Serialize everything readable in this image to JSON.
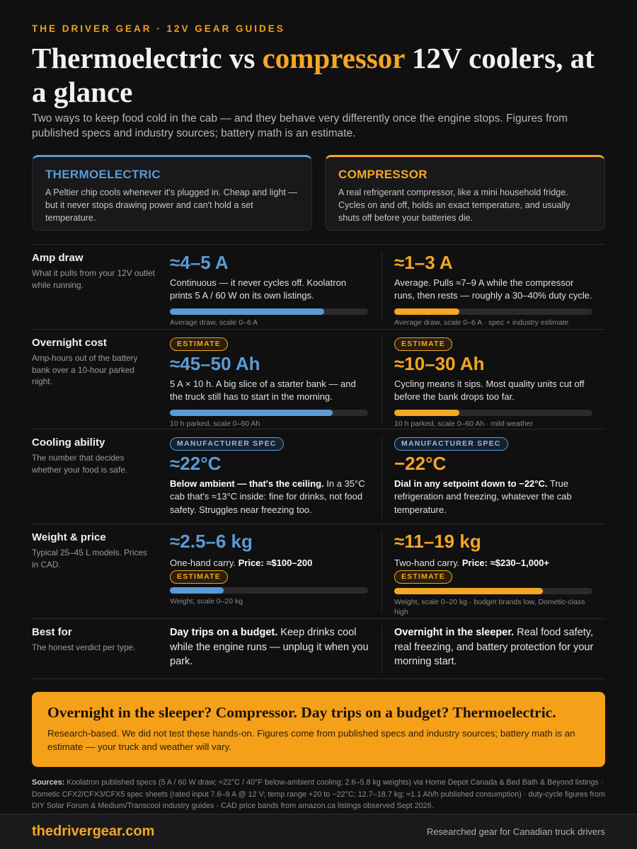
{
  "eyebrow": "THE DRIVER GEAR · 12V GEAR GUIDES",
  "headline": {
    "part1": "Thermoelectric vs ",
    "highlight": "compressor",
    "part2": " 12V coolers, at a glance"
  },
  "intro": "Two ways to keep food cold in the cab — and they behave very differently once the engine stops. Figures from published specs and industry sources; battery math is an estimate.",
  "colors": {
    "thermo": "#5b9bd5",
    "compressor": "#f5a623",
    "background": "#101011"
  },
  "cards": {
    "thermo": {
      "title": "THERMOELECTRIC",
      "body": "A Peltier chip cools whenever it's plugged in. Cheap and light — but it never stops drawing power and can't hold a set temperature."
    },
    "compressor": {
      "title": "COMPRESSOR",
      "body": "A real refrigerant compressor, like a mini household fridge. Cycles on and off, holds an exact temperature, and usually shuts off before your batteries die."
    }
  },
  "rows": {
    "amp": {
      "title": "Amp draw",
      "sub": "What it pulls from your 12V outlet while running.",
      "thermo": {
        "value": "≈4–5 A",
        "desc": "Continuous — it never cycles off. Koolatron prints 5 A / 60 W on its own listings.",
        "bar_fraction": 0.78,
        "caption": "Average draw, scale 0–6 A"
      },
      "compressor": {
        "value": "≈1–3 A",
        "desc": "Average. Pulls ≈7–9 A while the compressor runs, then rests — roughly a 30–40% duty cycle.",
        "bar_fraction": 0.33,
        "caption": "Average draw, scale 0–6 A · spec + industry estimate"
      }
    },
    "overnight": {
      "title": "Overnight cost",
      "sub": "Amp-hours out of the battery bank over a 10-hour parked night.",
      "thermo": {
        "pill": "ESTIMATE",
        "value": "≈45–50 Ah",
        "desc": "5 A × 10 h. A big slice of a starter bank — and the truck still has to start in the morning.",
        "bar_fraction": 0.82,
        "caption": "10 h parked, scale 0–60 Ah"
      },
      "compressor": {
        "pill": "ESTIMATE",
        "value": "≈10–30 Ah",
        "desc": "Cycling means it sips. Most quality units cut off before the bank drops too far.",
        "bar_fraction": 0.33,
        "caption": "10 h parked, scale 0–60 Ah · mild weather"
      }
    },
    "cooling": {
      "title": "Cooling ability",
      "sub": "The number that decides whether your food is safe.",
      "thermo": {
        "pill": "MANUFACTURER SPEC",
        "value": "≈22°C",
        "desc_bold": "Below ambient — that's the ceiling.",
        "desc": " In a 35°C cab that's ≈13°C inside: fine for drinks, not food safety. Struggles near freezing too."
      },
      "compressor": {
        "pill": "MANUFACTURER SPEC",
        "value": "−22°C",
        "desc_bold": "Dial in any setpoint down to −22°C.",
        "desc": " True refrigeration and freezing, whatever the cab temperature."
      }
    },
    "weight": {
      "title": "Weight & price",
      "sub": "Typical 25–45 L models. Prices in CAD.",
      "thermo": {
        "value": "≈2.5–6 kg",
        "desc": "One-hand carry. ",
        "price": "Price: ≈$100–200",
        "pill": "ESTIMATE",
        "bar_fraction": 0.27,
        "caption": "Weight, scale 0–20 kg"
      },
      "compressor": {
        "value": "≈11–19 kg",
        "desc": "Two-hand carry. ",
        "price": "Price: ≈$230–1,000+",
        "pill": "ESTIMATE",
        "bar_fraction": 0.75,
        "caption": "Weight, scale 0–20 kg · budget brands low, Dometic-class high"
      }
    },
    "best": {
      "title": "Best for",
      "sub": "The honest verdict per type.",
      "thermo": {
        "bold": "Day trips on a budget.",
        "text": " Keep drinks cool while the engine runs — unplug it when you park."
      },
      "compressor": {
        "bold": "Overnight in the sleeper.",
        "text": " Real food safety, real freezing, and battery protection for your morning start."
      }
    }
  },
  "cta": {
    "headline": "Overnight in the sleeper? Compressor. Day trips on a budget? Thermoelectric.",
    "body": "Research-based. We did not test these hands-on. Figures come from published specs and industry sources; battery math is an estimate — your truck and weather will vary."
  },
  "sources": {
    "label": "Sources:",
    "text": " Koolatron published specs (5 A / 60 W draw; ≈22°C / 40°F below-ambient cooling; 2.6–5.8 kg weights) via Home Depot Canada & Bed Bath & Beyond listings · Dometic CFX2/CFX3/CFX5 spec sheets (rated input 7.6–9 A @ 12 V; temp range +20 to −22°C; 12.7–18.7 kg; ≈1.1 Ah/h published consumption) · duty-cycle figures from DIY Solar Forum & Medium/Transcool industry guides · CAD price bands from amazon.ca listings observed Sept 2026."
  },
  "footer": {
    "brand": "thedrivergear.com",
    "tagline": "Researched gear for Canadian truck drivers"
  }
}
